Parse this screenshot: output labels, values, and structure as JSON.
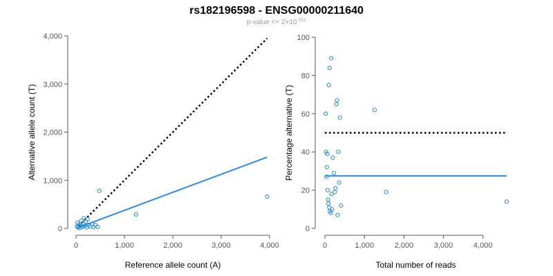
{
  "header": {
    "title": "rs182196598 - ENSG00000211640",
    "subtitle_prefix": "p-value <= 2×10",
    "subtitle_exponent": "-311"
  },
  "colors": {
    "points": "#1f8ad8",
    "fit_line": "#2a8ae8",
    "reference_line": "#000000",
    "axis": "#555555",
    "tick_text": "#555555",
    "subtitle": "#999999"
  },
  "chart_data": [
    {
      "type": "scatter",
      "title": "",
      "xlabel": "Reference allele count (A)",
      "ylabel": "Alternative allele count (T)",
      "xlim": [
        0,
        4000
      ],
      "ylim": [
        0,
        4000
      ],
      "x_ticks": [
        0,
        1000,
        2000,
        3000,
        4000
      ],
      "y_ticks": [
        0,
        1000,
        2000,
        3000,
        4000
      ],
      "x_tick_labels": [
        "0",
        "1,000",
        "2,000",
        "3,000",
        "4,000"
      ],
      "y_tick_labels": [
        "0",
        "1,000",
        "2,000",
        "3,000",
        "4,000"
      ],
      "grid": false,
      "points": [
        {
          "x": 20,
          "y": 40
        },
        {
          "x": 30,
          "y": 120
        },
        {
          "x": 40,
          "y": 20
        },
        {
          "x": 60,
          "y": 80
        },
        {
          "x": 80,
          "y": 10
        },
        {
          "x": 100,
          "y": 60
        },
        {
          "x": 110,
          "y": 160
        },
        {
          "x": 130,
          "y": 30
        },
        {
          "x": 150,
          "y": 100
        },
        {
          "x": 160,
          "y": 210
        },
        {
          "x": 180,
          "y": 50
        },
        {
          "x": 200,
          "y": 140
        },
        {
          "x": 220,
          "y": 20
        },
        {
          "x": 240,
          "y": 190
        },
        {
          "x": 260,
          "y": 70
        },
        {
          "x": 290,
          "y": 40
        },
        {
          "x": 330,
          "y": 90
        },
        {
          "x": 360,
          "y": 30
        },
        {
          "x": 400,
          "y": 70
        },
        {
          "x": 450,
          "y": 30
        },
        {
          "x": 480,
          "y": 780
        },
        {
          "x": 1240,
          "y": 290
        },
        {
          "x": 3950,
          "y": 660
        }
      ],
      "fit_line": {
        "x": [
          0,
          3950
        ],
        "y": [
          0,
          1480
        ]
      },
      "reference_line": {
        "x": [
          50,
          3950
        ],
        "y": [
          50,
          3950
        ]
      }
    },
    {
      "type": "scatter",
      "title": "",
      "xlabel": "Total number of reads",
      "ylabel": "Percentage alternative (T)",
      "xlim": [
        0,
        4600
      ],
      "ylim": [
        0,
        100
      ],
      "x_ticks": [
        0,
        1000,
        2000,
        3000,
        4000
      ],
      "y_ticks": [
        0,
        20,
        40,
        60,
        80,
        100
      ],
      "x_tick_labels": [
        "0",
        "1,000",
        "2,000",
        "3,000",
        "4,000"
      ],
      "y_tick_labels": [
        "0",
        "20",
        "40",
        "60",
        "80",
        "100"
      ],
      "grid": false,
      "points": [
        {
          "x": 20,
          "y": 60
        },
        {
          "x": 30,
          "y": 40
        },
        {
          "x": 40,
          "y": 27
        },
        {
          "x": 50,
          "y": 32
        },
        {
          "x": 60,
          "y": 39
        },
        {
          "x": 70,
          "y": 20
        },
        {
          "x": 80,
          "y": 15
        },
        {
          "x": 90,
          "y": 13
        },
        {
          "x": 100,
          "y": 75
        },
        {
          "x": 110,
          "y": 11
        },
        {
          "x": 120,
          "y": 84
        },
        {
          "x": 130,
          "y": 9
        },
        {
          "x": 150,
          "y": 8
        },
        {
          "x": 160,
          "y": 89
        },
        {
          "x": 170,
          "y": 18
        },
        {
          "x": 180,
          "y": 10
        },
        {
          "x": 200,
          "y": 37
        },
        {
          "x": 230,
          "y": 29
        },
        {
          "x": 250,
          "y": 19
        },
        {
          "x": 270,
          "y": 21
        },
        {
          "x": 290,
          "y": 65
        },
        {
          "x": 310,
          "y": 67
        },
        {
          "x": 320,
          "y": 7
        },
        {
          "x": 340,
          "y": 40
        },
        {
          "x": 360,
          "y": 24
        },
        {
          "x": 380,
          "y": 58
        },
        {
          "x": 410,
          "y": 12
        },
        {
          "x": 1260,
          "y": 62
        },
        {
          "x": 1550,
          "y": 19
        },
        {
          "x": 4600,
          "y": 14
        }
      ],
      "fit_line": {
        "x": [
          0,
          4600
        ],
        "y": [
          27.5,
          27.5
        ]
      },
      "reference_line": {
        "x": [
          0,
          4600
        ],
        "y": [
          50,
          50
        ]
      }
    }
  ]
}
